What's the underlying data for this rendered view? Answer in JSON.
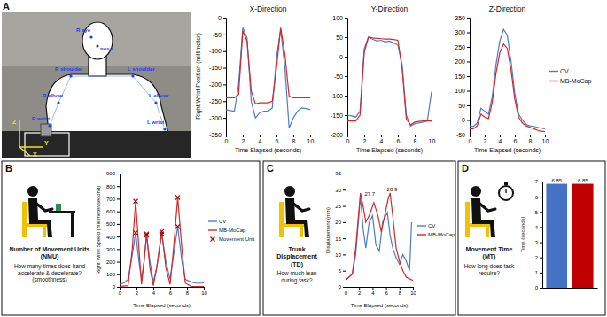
{
  "chart_data": [
    {
      "type": "line",
      "title": "X-Direction",
      "x_label": "Time Elapsed (seconds)",
      "y_label": "Right Wrist Position (millimeter)",
      "x": [
        0,
        0.5,
        1,
        1.5,
        2,
        2.5,
        3,
        3.5,
        4,
        4.5,
        5,
        5.5,
        6,
        6.5,
        7,
        7.5,
        8,
        8.5,
        9,
        9.5,
        10
      ],
      "series": [
        {
          "color": "#4a7cc9",
          "values": [
            -275,
            -278,
            -280,
            -200,
            -30,
            -60,
            -250,
            -300,
            -285,
            -280,
            -280,
            -270,
            -120,
            -35,
            -150,
            -330,
            -300,
            -280,
            -270,
            -272,
            -275
          ]
        },
        {
          "color": "#d62728",
          "values": [
            -240,
            -240,
            -240,
            -230,
            -40,
            -70,
            -220,
            -258,
            -255,
            -255,
            -255,
            -250,
            -150,
            -30,
            -110,
            -235,
            -240,
            -240,
            -240,
            -240,
            -240
          ]
        }
      ],
      "xlim": [
        0,
        10
      ],
      "xticks": [
        0,
        2,
        4,
        6,
        8,
        10
      ],
      "ylim": [
        -350,
        0
      ],
      "yticks": [
        -350,
        -300,
        -250,
        -200,
        -150,
        -100,
        -50,
        0
      ]
    },
    {
      "type": "line",
      "title": "Y-Direction",
      "x_label": "Time Elapsed (seconds)",
      "x": [
        0,
        0.5,
        1,
        1.5,
        2,
        2.5,
        3,
        3.5,
        4,
        4.5,
        5,
        5.5,
        6,
        6.5,
        7,
        7.5,
        8,
        8.5,
        9,
        9.5,
        10
      ],
      "series": [
        {
          "color": "#4a7cc9",
          "values": [
            -150,
            -152,
            -155,
            -140,
            20,
            50,
            45,
            40,
            42,
            38,
            40,
            35,
            30,
            -20,
            -150,
            -178,
            -172,
            -170,
            -168,
            -165,
            -90
          ]
        },
        {
          "color": "#d62728",
          "values": [
            -165,
            -165,
            -165,
            -150,
            10,
            50,
            48,
            47,
            46,
            45,
            45,
            44,
            42,
            -30,
            -160,
            -175,
            -168,
            -166,
            -165,
            -165,
            -165
          ]
        }
      ],
      "xlim": [
        0,
        10
      ],
      "xticks": [
        0,
        2,
        4,
        6,
        8,
        10
      ],
      "ylim": [
        -200,
        100
      ],
      "yticks": [
        -200,
        -150,
        -100,
        -50,
        0,
        50,
        100
      ]
    },
    {
      "type": "line",
      "title": "Z-Direction",
      "x_label": "Time Elapsed (seconds)",
      "x": [
        0,
        0.5,
        1,
        1.5,
        2,
        2.5,
        3,
        3.5,
        4,
        4.5,
        5,
        5.5,
        6,
        6.5,
        7,
        7.5,
        8,
        8.5,
        9,
        9.5,
        10
      ],
      "series": [
        {
          "name": "CV",
          "color": "#4a7cc9",
          "values": [
            -20,
            -22,
            -10,
            40,
            30,
            20,
            80,
            190,
            270,
            310,
            290,
            200,
            90,
            20,
            0,
            -15,
            -20,
            -22,
            -25,
            -28,
            -30
          ]
        },
        {
          "name": "MB-MoCap",
          "color": "#d62728",
          "values": [
            -30,
            -30,
            -20,
            20,
            10,
            5,
            60,
            160,
            230,
            260,
            245,
            170,
            70,
            10,
            -10,
            -20,
            -25,
            -30,
            -35,
            -38,
            -40
          ]
        }
      ],
      "xlim": [
        0,
        10
      ],
      "xticks": [
        0,
        2,
        4,
        6,
        8,
        10
      ],
      "ylim": [
        -50,
        350
      ],
      "yticks": [
        -50,
        0,
        50,
        100,
        150,
        200,
        250,
        300,
        350
      ],
      "legend": "right"
    },
    {
      "type": "line",
      "title": "Number of Movement Units (NMU)",
      "subtitle": "How many times does hand accelerate & decelerate? (smoothness)",
      "x_label": "Time Elapsed (seconds)",
      "y_label": "Right Wrist Speed (millimeter/second)",
      "series": [
        {
          "name": "CV",
          "color": "#4a7cc9",
          "x": [
            0,
            0.5,
            1,
            1.5,
            1.9,
            2.3,
            2.6,
            2.9,
            3.2,
            3.6,
            4.0,
            4.4,
            5.0,
            5.5,
            6.0,
            6.4,
            6.9,
            7.4,
            7.8,
            8.5,
            9,
            10
          ],
          "values": [
            20,
            30,
            60,
            250,
            430,
            200,
            60,
            200,
            410,
            200,
            40,
            150,
            420,
            200,
            60,
            250,
            480,
            200,
            60,
            40,
            30,
            30
          ]
        },
        {
          "name": "MB-MoCap",
          "color": "#d62728",
          "x": [
            0,
            1,
            1.5,
            1.9,
            2.3,
            2.6,
            2.9,
            3.2,
            3.6,
            4.0,
            4.4,
            5.0,
            5.5,
            6.0,
            6.4,
            6.9,
            7.4,
            7.8,
            8.5,
            10
          ],
          "values": [
            5,
            10,
            300,
            680,
            300,
            20,
            200,
            420,
            150,
            10,
            150,
            440,
            150,
            20,
            300,
            710,
            300,
            30,
            5,
            2
          ]
        },
        {
          "name": "Movement Unit",
          "type": "scatter",
          "marker": "x",
          "color": "#a01010",
          "x": [
            1.9,
            1.9,
            3.2,
            3.2,
            5.0,
            5.0,
            6.9,
            6.9
          ],
          "values": [
            680,
            430,
            420,
            410,
            440,
            420,
            710,
            480
          ]
        }
      ],
      "xlim": [
        0,
        10
      ],
      "xticks": [
        0,
        2,
        4,
        6,
        8,
        10
      ],
      "ylim": [
        0,
        900
      ],
      "yticks": [
        0,
        100,
        200,
        300,
        400,
        500,
        600,
        700,
        800,
        900
      ],
      "legend": "right"
    },
    {
      "type": "line",
      "title": "Trunk Displacement (TD)",
      "subtitle": "How much lean during task?",
      "x_label": "Time Elapsed (seconds)",
      "y_label": "Displacement (mm)",
      "series": [
        {
          "name": "CV",
          "color": "#4a7cc9",
          "x": [
            0,
            1,
            1.5,
            2.2,
            2.6,
            3,
            3.5,
            4,
            4.5,
            5,
            5.5,
            6.2,
            6.6,
            7,
            7.5,
            8,
            8.5,
            9,
            9.5,
            9.8
          ],
          "values": [
            2,
            4,
            10,
            28,
            18,
            12,
            20,
            22,
            13,
            11,
            20,
            23,
            16,
            12,
            9,
            7,
            10,
            8,
            5,
            20
          ]
        },
        {
          "name": "MB-MoCap",
          "color": "#d62728",
          "x": [
            0,
            1,
            1.5,
            2.2,
            2.6,
            3,
            3.5,
            4.2,
            4.8,
            5.3,
            5.8,
            6.3,
            6.6,
            7,
            7.5,
            8,
            8.5,
            9,
            10
          ],
          "values": [
            2,
            4,
            12,
            29,
            25,
            20,
            22,
            26,
            22,
            17,
            22,
            27,
            29,
            22,
            12,
            8,
            5,
            3,
            2
          ]
        }
      ],
      "annotations": [
        {
          "text": "27.7",
          "x": 3.6,
          "y": 27.7
        },
        {
          "text": "28.9",
          "x": 6.9,
          "y": 28.9
        }
      ],
      "xlim": [
        0,
        10
      ],
      "xticks": [
        0,
        2,
        4,
        6,
        8,
        10
      ],
      "ylim": [
        0,
        35
      ],
      "yticks": [
        0,
        5,
        10,
        15,
        20,
        25,
        30,
        35
      ],
      "legend": "right"
    },
    {
      "type": "bar",
      "title": "Movement Time (MT)",
      "subtitle": "How long does task require?",
      "y_label": "Time (seconds)",
      "categories": [
        null,
        null
      ],
      "values": [
        6.85,
        6.85
      ],
      "colors": [
        "#4472c4",
        "#c00000"
      ],
      "ylim": [
        0,
        7
      ],
      "yticks": [
        0,
        1,
        2,
        3,
        4,
        5,
        6,
        7
      ],
      "data_labels": true
    }
  ],
  "figure": {
    "panels": [
      "A",
      "B",
      "C",
      "D"
    ],
    "keypoints": [
      "R eye",
      "nose",
      "R shoulder",
      "L shoulder",
      "R elbow",
      "L elbow",
      "R wrist",
      "L wrist"
    ],
    "table_axes": [
      "Z",
      "Y",
      "X"
    ]
  }
}
